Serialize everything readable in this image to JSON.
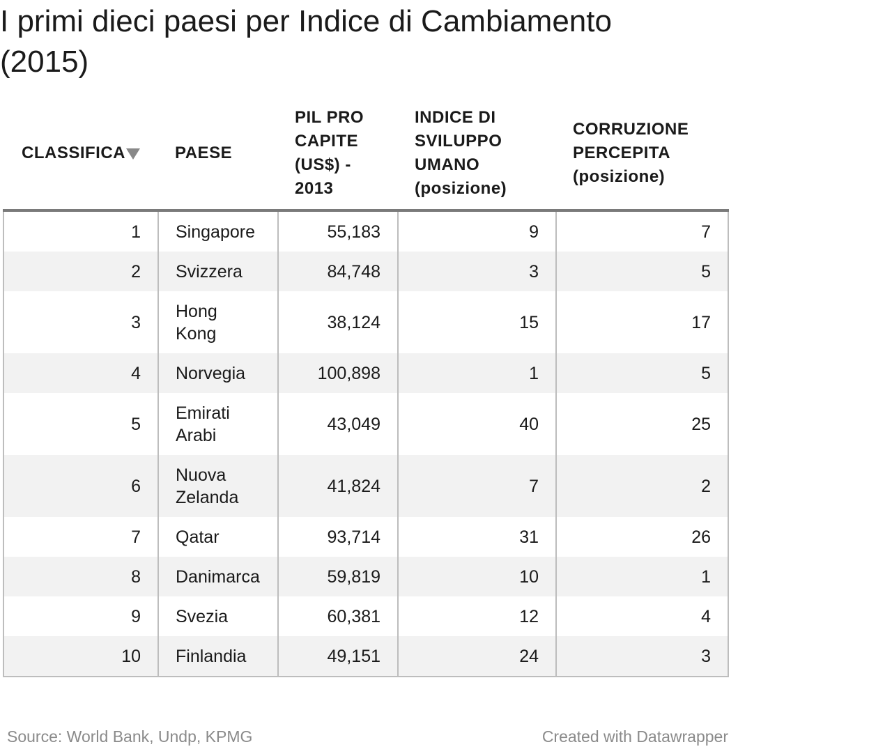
{
  "title": "I primi dieci paesi per Indice di Cambiamento (2015)",
  "columns": {
    "rank": "CLASSIFICA",
    "country": "PAESE",
    "gdp": "PIL PRO CAPITE (US$) - 2013",
    "hdi": "INDICE DI SVILUPPO UMANO (posizione)",
    "corruption": "CORRUZIONE PERCEPITA (posizione)"
  },
  "sort_indicator_icon": "triangle-down-icon",
  "chart_data": {
    "type": "table",
    "title": "I primi dieci paesi per Indice di Cambiamento (2015)",
    "columns": [
      "CLASSIFICA",
      "PAESE",
      "PIL PRO CAPITE (US$) - 2013",
      "INDICE DI SVILUPPO UMANO (posizione)",
      "CORRUZIONE PERCEPITA (posizione)"
    ],
    "rows": [
      {
        "rank": "1",
        "country": "Singapore",
        "gdp": "55,183",
        "hdi": "9",
        "corruption": "7"
      },
      {
        "rank": "2",
        "country": "Svizzera",
        "gdp": "84,748",
        "hdi": "3",
        "corruption": "5"
      },
      {
        "rank": "3",
        "country": "Hong Kong",
        "gdp": "38,124",
        "hdi": "15",
        "corruption": "17"
      },
      {
        "rank": "4",
        "country": "Norvegia",
        "gdp": "100,898",
        "hdi": "1",
        "corruption": "5"
      },
      {
        "rank": "5",
        "country": "Emirati Arabi",
        "gdp": "43,049",
        "hdi": "40",
        "corruption": "25"
      },
      {
        "rank": "6",
        "country": "Nuova Zelanda",
        "gdp": "41,824",
        "hdi": "7",
        "corruption": "2"
      },
      {
        "rank": "7",
        "country": "Qatar",
        "gdp": "93,714",
        "hdi": "31",
        "corruption": "26"
      },
      {
        "rank": "8",
        "country": "Danimarca",
        "gdp": "59,819",
        "hdi": "10",
        "corruption": "1"
      },
      {
        "rank": "9",
        "country": "Svezia",
        "gdp": "60,381",
        "hdi": "12",
        "corruption": "4"
      },
      {
        "rank": "10",
        "country": "Finlandia",
        "gdp": "49,151",
        "hdi": "24",
        "corruption": "3"
      }
    ]
  },
  "footer": {
    "source": "Source: World Bank, Undp, KPMG",
    "credit": "Created with Datawrapper"
  },
  "colors": {
    "text": "#1a1a1a",
    "stripe": "#f2f2f2",
    "border": "#bdbdbd",
    "header_rule": "#7a7a7a",
    "footer_text": "#8a8a8a"
  }
}
